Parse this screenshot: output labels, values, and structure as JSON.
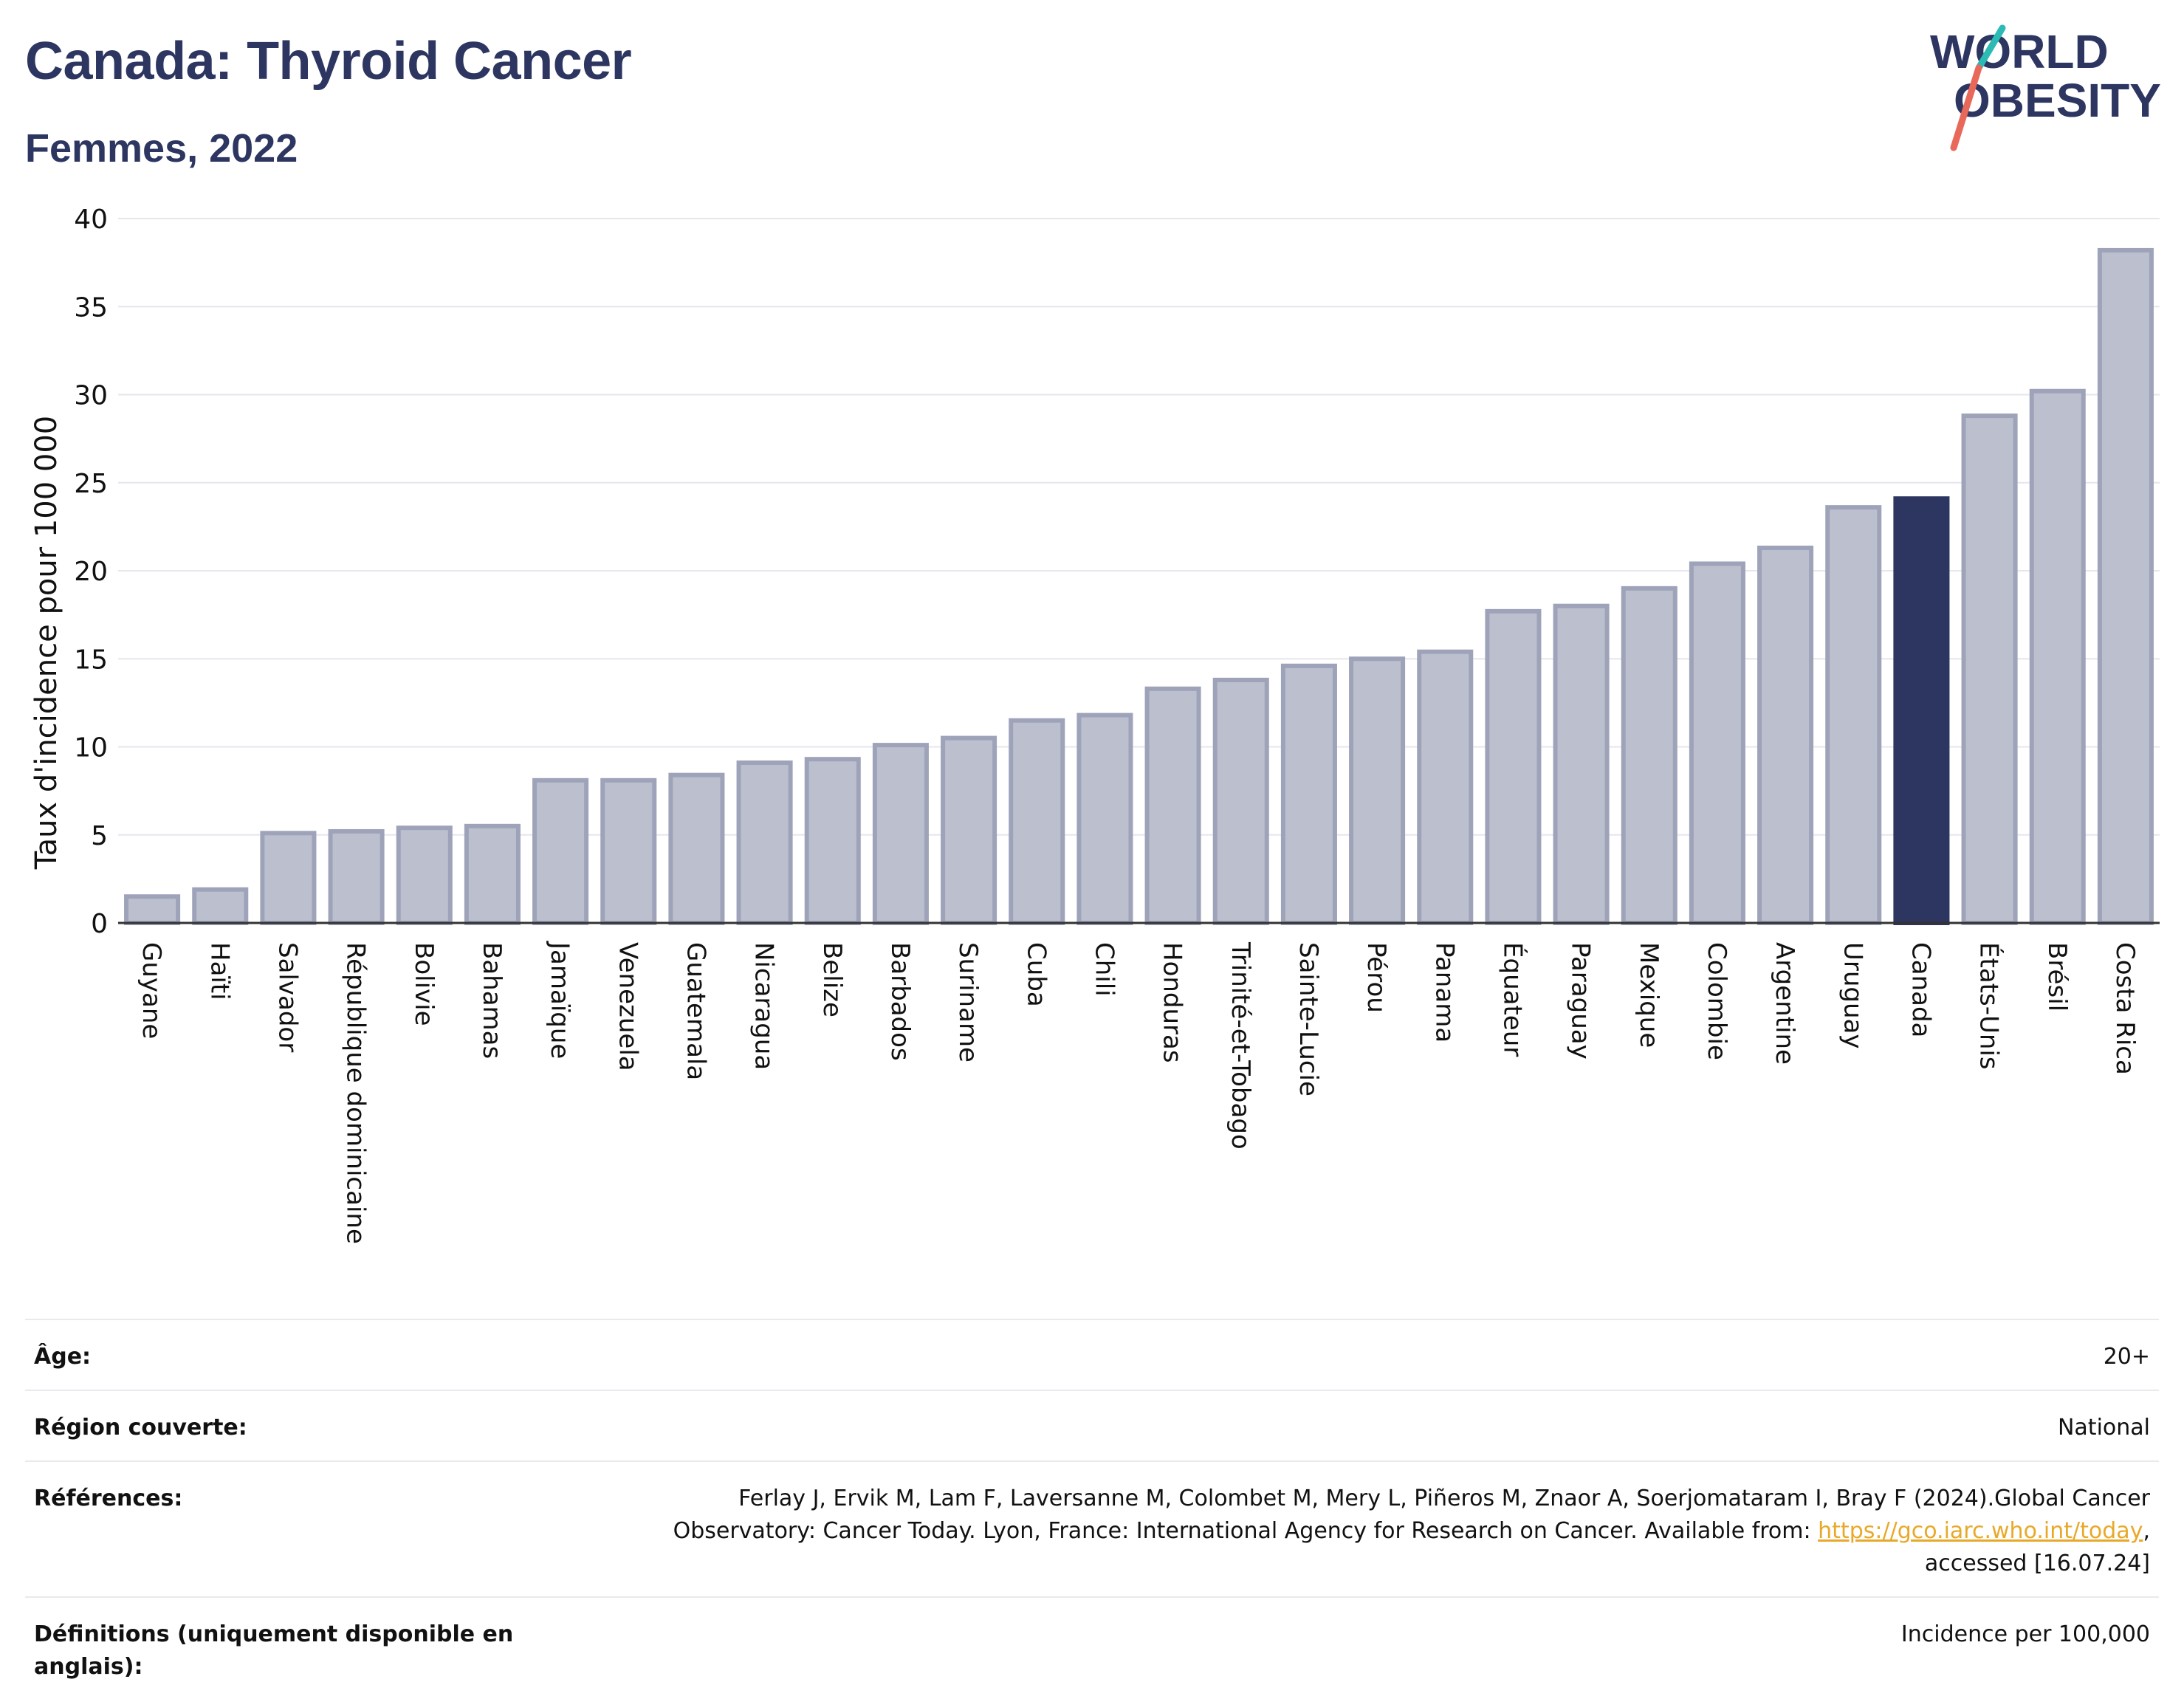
{
  "header": {
    "title": "Canada: Thyroid Cancer",
    "subtitle": "Femmes, 2022"
  },
  "logo": {
    "line1": "WORLD",
    "line2": "OBESITY",
    "slash_color_top": "#2bbbb4",
    "slash_color_bottom": "#e8685a"
  },
  "colors": {
    "bar_default": "#bcc0ce",
    "bar_default_stroke": "#9ea3ba",
    "bar_highlight": "#2d3561",
    "text": "#2d3561",
    "grid": "#e6e6ee"
  },
  "chart_data": {
    "type": "bar",
    "ylabel": "Taux d'incidence pour 100 000",
    "xlabel": "",
    "ylim": [
      0,
      40
    ],
    "yticks": [
      0,
      5,
      10,
      15,
      20,
      25,
      30,
      35,
      40
    ],
    "grid": true,
    "highlight": "Canada",
    "categories": [
      "Guyane",
      "Haïti",
      "Salvador",
      "République dominicaine",
      "Bolivie",
      "Bahamas",
      "Jamaïque",
      "Venezuela",
      "Guatemala",
      "Nicaragua",
      "Belize",
      "Barbados",
      "Suriname",
      "Cuba",
      "Chili",
      "Honduras",
      "Trinité-et-Tobago",
      "Sainte-Lucie",
      "Pérou",
      "Panama",
      "Équateur",
      "Paraguay",
      "Mexique",
      "Colombie",
      "Argentine",
      "Uruguay",
      "Canada",
      "États-Unis",
      "Brésil",
      "Costa Rica"
    ],
    "values": [
      1.5,
      1.9,
      5.1,
      5.2,
      5.4,
      5.5,
      8.1,
      8.1,
      8.4,
      9.1,
      9.3,
      10.1,
      10.5,
      11.5,
      11.8,
      13.3,
      13.8,
      14.6,
      15.0,
      15.4,
      17.7,
      18.0,
      19.0,
      20.4,
      21.3,
      23.6,
      24.1,
      28.8,
      30.2,
      38.2
    ]
  },
  "info": {
    "age_label": "Âge:",
    "age_value": "20+",
    "region_label": "Région couverte:",
    "region_value": "National",
    "references_label": "Références:",
    "references_line1": "Ferlay J, Ervik M, Lam F, Laversanne M, Colombet M, Mery L, Piñeros M, Znaor A, Soerjomataram I, Bray F (2024).Global Cancer",
    "references_line2": "Observatory: Cancer Today. Lyon, France: International Agency for Research on Cancer. Available from: ",
    "references_link": "https://gco.iarc.who.int/today",
    "references_line2_end": ",",
    "references_line3": "accessed [16.07.24]",
    "definitions_label": "Définitions (uniquement disponible en anglais):",
    "definitions_value": "Incidence per 100,000"
  }
}
